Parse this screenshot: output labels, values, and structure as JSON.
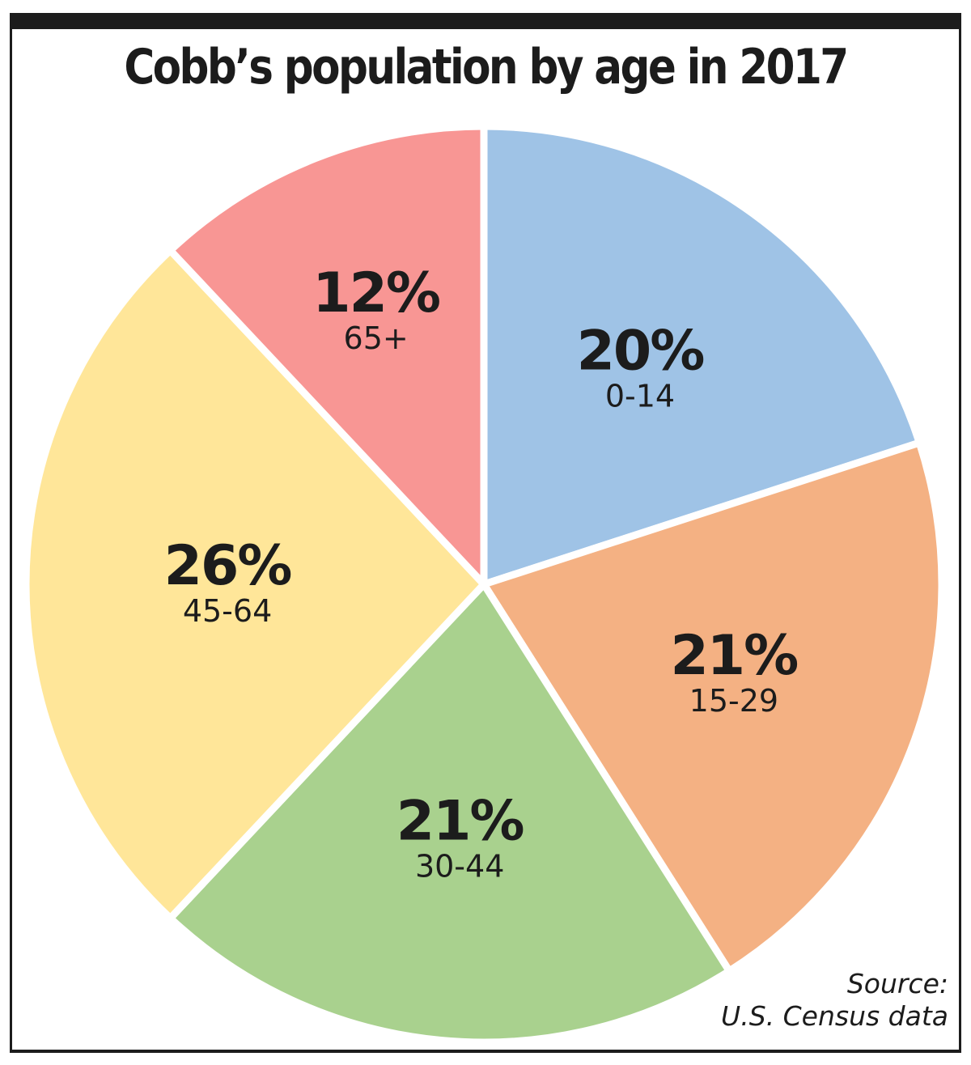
{
  "chart_data": {
    "type": "pie",
    "title": "Cobb’s population by age in 2017",
    "slices": [
      {
        "label": "0-14",
        "value": 20,
        "value_label": "20%",
        "color": "#9fc3e6"
      },
      {
        "label": "15-29",
        "value": 21,
        "value_label": "21%",
        "color": "#f4b183"
      },
      {
        "label": "30-44",
        "value": 21,
        "value_label": "21%",
        "color": "#a9d18e"
      },
      {
        "label": "45-64",
        "value": 26,
        "value_label": "26%",
        "color": "#ffe699"
      },
      {
        "label": "65+",
        "value": 12,
        "value_label": "12%",
        "color": "#f89694"
      }
    ],
    "start_angle_deg": 0,
    "direction": "clockwise"
  },
  "source": {
    "line1": "Source:",
    "line2": "U.S. Census data"
  },
  "colors": {
    "rule": "#1c1c1c",
    "slice_border": "#ffffff"
  }
}
